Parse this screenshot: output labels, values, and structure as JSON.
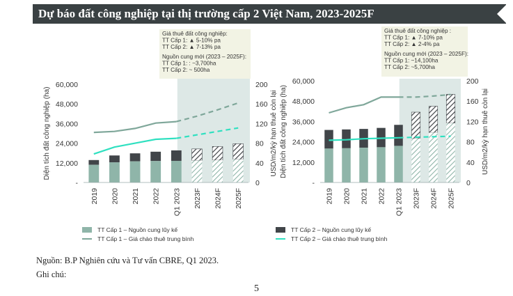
{
  "title": "Dự báo đất công nghiệp tại thị trường cấp 2 Việt Nam, 2023-2025F",
  "source": "Nguồn: B.P Nghiên cứu và Tư vấn CBRE, Q1 2023.",
  "note": "Ghi chú:",
  "page_number": "5",
  "colors": {
    "tier1_bar": "#8fb5a9",
    "tier1_line": "#7fa79a",
    "tier2_bar": "#414549",
    "tier2_line": "#2fe0c0",
    "forecast_band": "#dde8e6",
    "annotation_bg": "#f2f3e4"
  },
  "chart_data": [
    {
      "type": "bar",
      "panel": "left",
      "categories": [
        "2019",
        "2020",
        "2021",
        "2022",
        "Q1 2023",
        "2023F",
        "2024F",
        "2025F"
      ],
      "forecast_from_index": 5,
      "ylabel": "Diện tích đất công nghiệp (ha)",
      "y2label": "USD/m2/kỳ hạn thuê còn lại",
      "ylim": [
        0,
        60000
      ],
      "y_ticks": [
        "-",
        "12,000",
        "24,000",
        "36,000",
        "48,000",
        "60,000"
      ],
      "y2lim": [
        0,
        200
      ],
      "y2_ticks": [
        "0",
        "40",
        "80",
        "120",
        "160",
        "200"
      ],
      "bars": {
        "name": "TT Cấp 1 – Nguồn cung lũy kế",
        "values": [
          10800,
          12300,
          12900,
          13100,
          13200,
          13500,
          13600,
          14200
        ]
      },
      "stack_tops": [
        13700,
        16500,
        17800,
        18800,
        19600,
        20500,
        22000,
        23700
      ],
      "line_tier1": {
        "name": "TT Cấp 1 – Giá chào thuê trung bình",
        "values": [
          102,
          104,
          110,
          121,
          124,
          135,
          148,
          162
        ]
      },
      "line_tier2": {
        "values": [
          58,
          72,
          80,
          88,
          90,
          null,
          null,
          111
        ]
      },
      "annotation": {
        "rent_header": "Giá thuê đất công nghiệp:",
        "rent_t1": "TT Cấp 1: ▲ 5-10% pa",
        "rent_t2": "TT Cấp 2: ▲ 7-13% pa",
        "supply_header": "Nguồn cung mới (2023 – 2025F):",
        "supply_t1": "TT Cấp 1: : ~3,700ha",
        "supply_t2": "TT Cấp 2: ~ 500ha"
      }
    },
    {
      "type": "bar",
      "panel": "right",
      "categories": [
        "2019",
        "2020",
        "2021",
        "2022",
        "Q1 2023",
        "2023F",
        "2024F",
        "2025F"
      ],
      "forecast_from_index": 5,
      "ylabel": "Diện tích đất công nghiệp (ha)",
      "y2label": "USD/m2/kỳ hạn thuê còn lại",
      "ylim": [
        0,
        60000
      ],
      "y_ticks": [
        "-",
        "12,000",
        "24,000",
        "36,000",
        "48,000",
        "60,000"
      ],
      "y2lim": [
        0,
        200
      ],
      "y2_ticks": [
        "0",
        "40",
        "80",
        "120",
        "160",
        "200"
      ],
      "bars": {
        "values": [
          20000,
          20200,
          20500,
          20800,
          21600,
          26000,
          29500,
          35000
        ]
      },
      "stack_tops": {
        "name": "TT Cấp 2 – Nguồn cung lũy kế",
        "values": [
          31000,
          31300,
          31600,
          32200,
          34000,
          41500,
          45000,
          52000
        ]
      },
      "line_tier1": {
        "values": [
          137,
          147,
          153,
          168,
          168,
          168,
          170,
          173
        ]
      },
      "line_tier2": {
        "name": "TT Cấp 2 – Giá chào thuê trung bình",
        "values": [
          83,
          84,
          86,
          87,
          88,
          89,
          90,
          91
        ]
      },
      "annotation": {
        "rent_header": "Giá thuê đất công nghiệp :",
        "rent_t1": "TT Cấp 1: ▲ 7-10% pa",
        "rent_t2": "TT Cấp 2: ▲ 2-4% pa",
        "supply_header": "Nguồn cung mới (2023 – 2025F):",
        "supply_t1": "TT Cấp 1: ~14,100ha",
        "supply_t2": "TT Cấp 2: ~5,700ha"
      }
    }
  ],
  "legend": {
    "t1_bar": "TT Cấp 1 – Nguồn cung lũy kế",
    "t1_line": "TT Cấp 1 – Giá chào thuê trung bình",
    "t2_bar": "TT Cấp 2 – Nguồn cung lũy kế",
    "t2_line": "TT Cấp 2 – Giá chào thuê trung bình"
  }
}
